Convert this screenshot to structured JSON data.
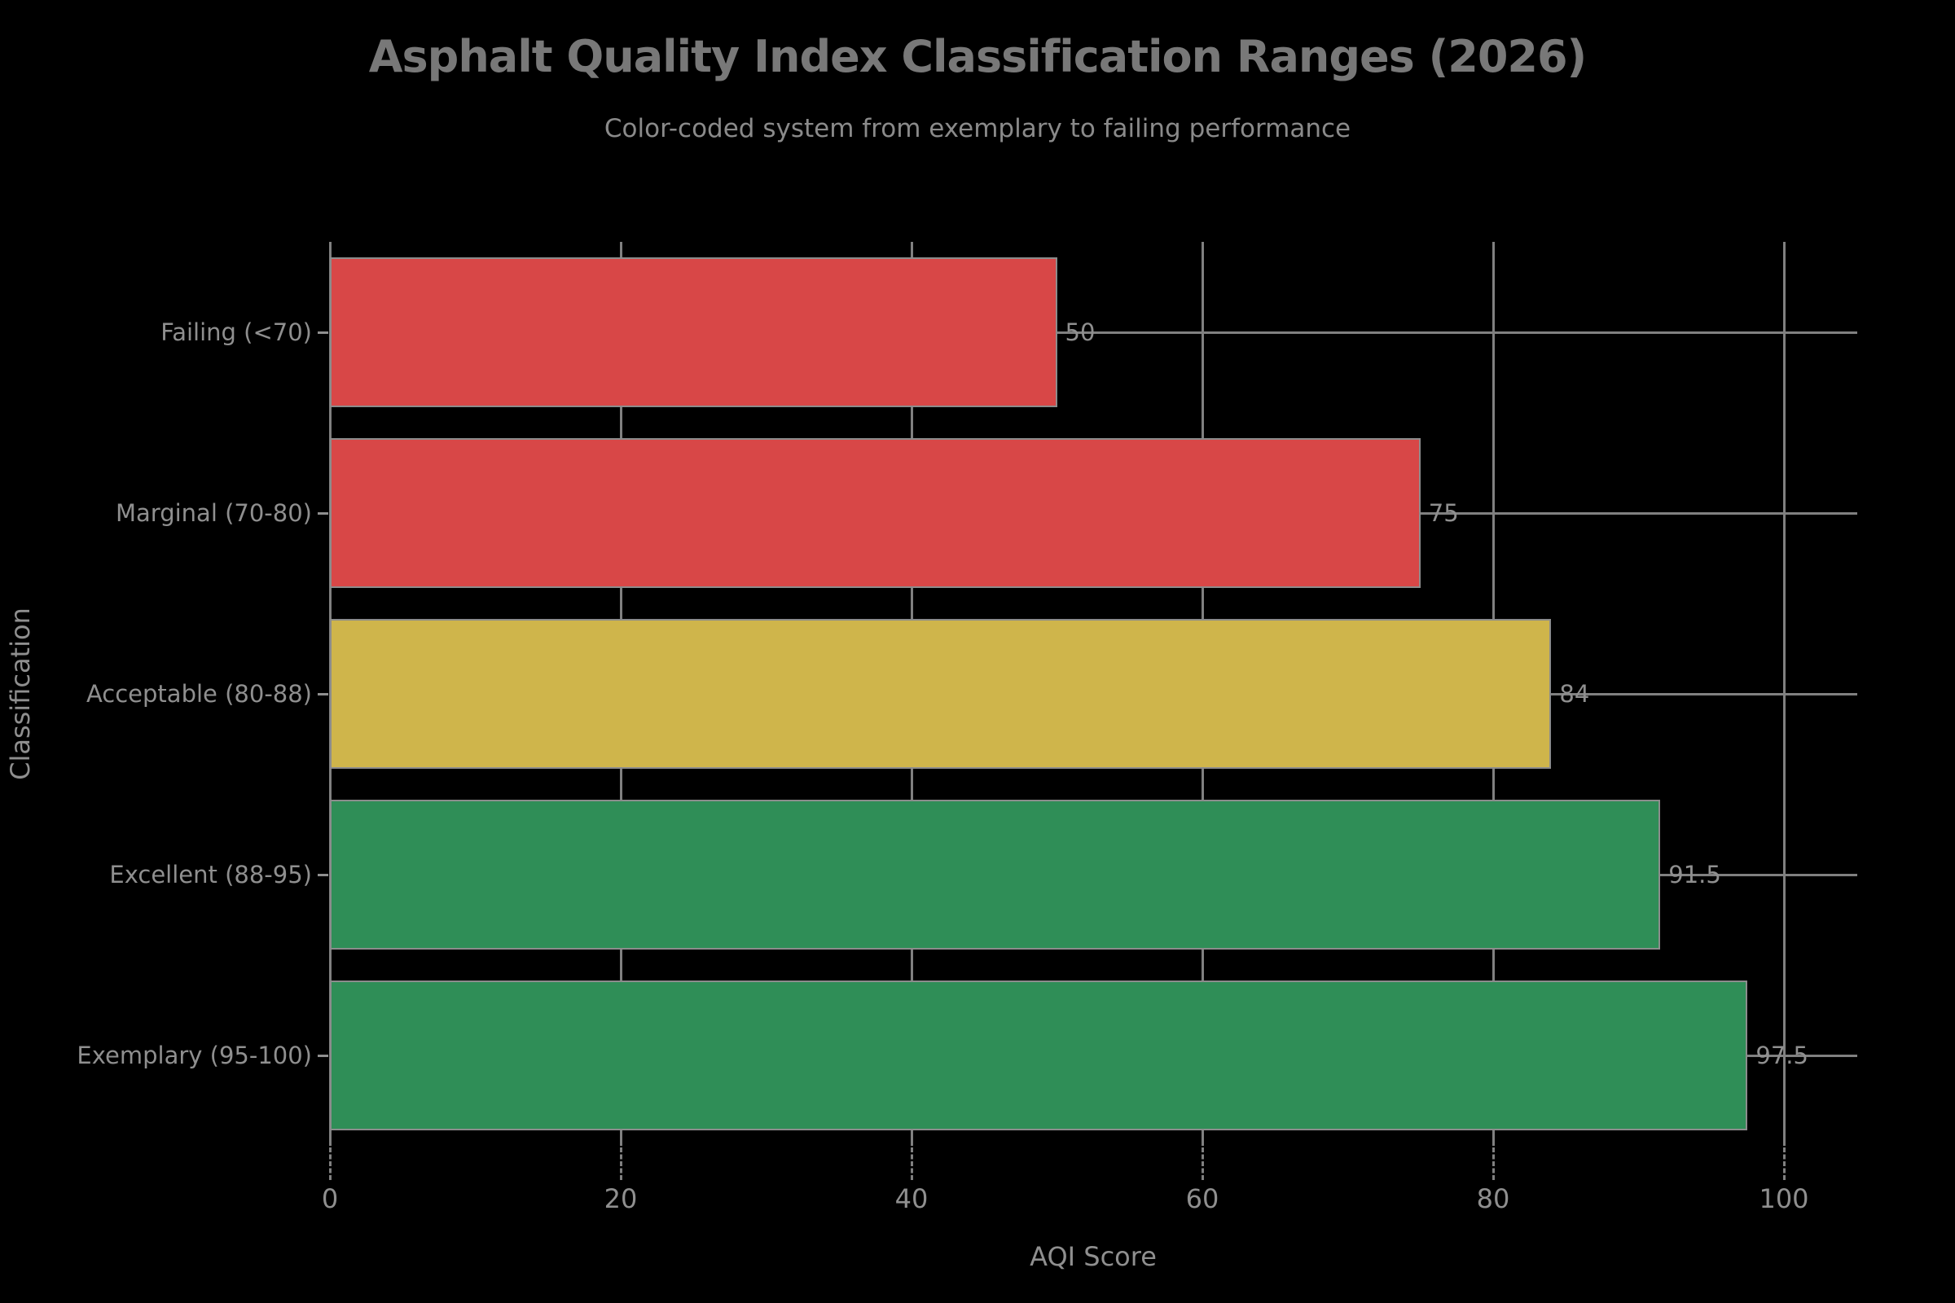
{
  "chart_data": {
    "type": "bar",
    "orientation": "horizontal",
    "title": "Asphalt Quality Index Classification Ranges (2026)",
    "subtitle": "Color-coded system from exemplary to failing performance",
    "xlabel": "AQI Score",
    "ylabel": "Classification",
    "categories": [
      "Failing (<70)",
      "Marginal (70-80)",
      "Acceptable (80-88)",
      "Excellent (88-95)",
      "Exemplary (95-100)"
    ],
    "values": [
      50,
      75,
      84,
      91.5,
      97.5
    ],
    "value_labels": [
      "50",
      "75",
      "84",
      "91.5",
      "97.5"
    ],
    "bar_colors": [
      "#d84747",
      "#d84747",
      "#cfb54b",
      "#2f8e57",
      "#2f8e57"
    ],
    "x_ticks": [
      0,
      20,
      40,
      60,
      80,
      100
    ],
    "x_tick_labels": [
      "0",
      "20",
      "40",
      "60",
      "80",
      "100"
    ],
    "xlim": [
      0,
      105
    ],
    "grid": true,
    "legend": false,
    "colors": {
      "background": "#000000",
      "gridline": "#808080",
      "bar_stroke": "#8c8c8c",
      "title_text": "#787878",
      "subtitle_text": "#8a8a8a",
      "label_text": "#8f8f8f"
    }
  }
}
